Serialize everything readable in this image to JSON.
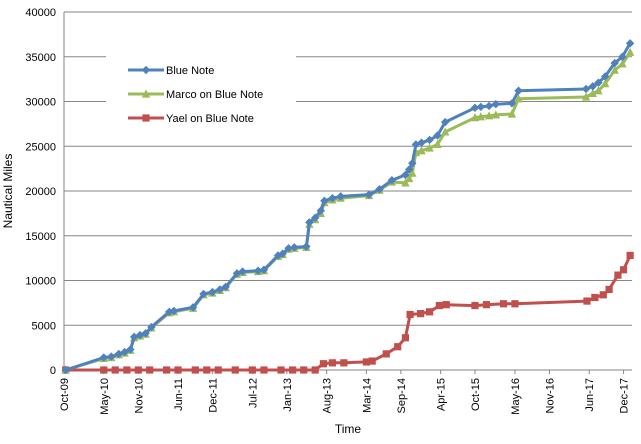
{
  "chart_data": {
    "type": "line",
    "title": "",
    "xlabel": "Time",
    "ylabel": "Nautical Miles",
    "ylim": [
      0,
      40000
    ],
    "yticks": [
      0,
      5000,
      10000,
      15000,
      20000,
      25000,
      30000,
      35000,
      40000
    ],
    "xlim": [
      "2009-10-01",
      "2018-01-15"
    ],
    "xticks": [
      "Oct-09",
      "May-10",
      "Nov-10",
      "Jun-11",
      "Dec-11",
      "Jul-12",
      "Jan-13",
      "Aug-13",
      "Mar-14",
      "Sep-14",
      "Apr-15",
      "Oct-15",
      "May-16",
      "Nov-16",
      "Jun-17",
      "Dec-17"
    ],
    "xtick_dates": [
      "2009-10-01",
      "2010-05-01",
      "2010-11-01",
      "2011-06-01",
      "2011-12-01",
      "2012-07-01",
      "2013-01-01",
      "2013-08-01",
      "2014-03-01",
      "2014-09-01",
      "2015-04-01",
      "2015-10-01",
      "2016-05-01",
      "2016-11-01",
      "2017-06-01",
      "2017-12-01"
    ],
    "grid": {
      "horizontal": true,
      "vertical": false
    },
    "legend_position": "upper-left",
    "series": [
      {
        "name": "Blue Note",
        "color": "#4f81bd",
        "marker": "diamond",
        "points": [
          [
            "2009-10-10",
            0
          ],
          [
            "2010-05-01",
            1400
          ],
          [
            "2010-06-10",
            1500
          ],
          [
            "2010-07-20",
            1800
          ],
          [
            "2010-08-20",
            2000
          ],
          [
            "2010-09-20",
            2300
          ],
          [
            "2010-10-10",
            3700
          ],
          [
            "2010-11-10",
            3900
          ],
          [
            "2010-12-10",
            4100
          ],
          [
            "2011-01-10",
            4800
          ],
          [
            "2011-04-15",
            6500
          ],
          [
            "2011-05-10",
            6600
          ],
          [
            "2011-08-20",
            7000
          ],
          [
            "2011-10-15",
            8500
          ],
          [
            "2011-12-01",
            8700
          ],
          [
            "2012-01-10",
            9000
          ],
          [
            "2012-02-10",
            9300
          ],
          [
            "2012-04-10",
            10800
          ],
          [
            "2012-05-10",
            11000
          ],
          [
            "2012-08-01",
            11100
          ],
          [
            "2012-09-01",
            11200
          ],
          [
            "2012-11-15",
            12800
          ],
          [
            "2012-12-10",
            13000
          ],
          [
            "2013-01-10",
            13600
          ],
          [
            "2013-02-10",
            13700
          ],
          [
            "2013-04-15",
            13800
          ],
          [
            "2013-05-01",
            16500
          ],
          [
            "2013-06-01",
            17000
          ],
          [
            "2013-07-01",
            17800
          ],
          [
            "2013-07-20",
            18900
          ],
          [
            "2013-09-01",
            19200
          ],
          [
            "2013-10-15",
            19400
          ],
          [
            "2014-03-15",
            19600
          ],
          [
            "2014-05-10",
            20200
          ],
          [
            "2014-07-15",
            21200
          ],
          [
            "2014-09-25",
            21800
          ],
          [
            "2014-10-15",
            22400
          ],
          [
            "2014-11-01",
            23100
          ],
          [
            "2014-11-20",
            25200
          ],
          [
            "2014-12-20",
            25400
          ],
          [
            "2015-02-01",
            25700
          ],
          [
            "2015-03-15",
            26200
          ],
          [
            "2015-04-25",
            27700
          ],
          [
            "2015-10-01",
            29300
          ],
          [
            "2015-11-01",
            29400
          ],
          [
            "2015-12-15",
            29500
          ],
          [
            "2016-01-20",
            29700
          ],
          [
            "2016-04-15",
            29800
          ],
          [
            "2016-05-20",
            31200
          ],
          [
            "2017-05-15",
            31400
          ],
          [
            "2017-06-20",
            31700
          ],
          [
            "2017-07-20",
            32100
          ],
          [
            "2017-08-25",
            32800
          ],
          [
            "2017-10-15",
            34300
          ],
          [
            "2017-11-25",
            35000
          ],
          [
            "2018-01-05",
            36500
          ]
        ]
      },
      {
        "name": "Marco on Blue Note",
        "color": "#9bbb59",
        "marker": "triangle",
        "points": [
          [
            "2009-10-10",
            0
          ],
          [
            "2010-05-01",
            1300
          ],
          [
            "2010-06-10",
            1400
          ],
          [
            "2010-07-20",
            1700
          ],
          [
            "2010-08-20",
            1900
          ],
          [
            "2010-09-20",
            2200
          ],
          [
            "2010-10-10",
            3600
          ],
          [
            "2010-11-10",
            3800
          ],
          [
            "2010-12-10",
            4000
          ],
          [
            "2011-01-10",
            4700
          ],
          [
            "2011-04-15",
            6400
          ],
          [
            "2011-05-10",
            6500
          ],
          [
            "2011-08-20",
            6900
          ],
          [
            "2011-10-15",
            8400
          ],
          [
            "2011-12-01",
            8600
          ],
          [
            "2012-01-10",
            8900
          ],
          [
            "2012-02-10",
            9200
          ],
          [
            "2012-04-10",
            10700
          ],
          [
            "2012-05-10",
            10900
          ],
          [
            "2012-08-01",
            11000
          ],
          [
            "2012-09-01",
            11100
          ],
          [
            "2012-11-15",
            12700
          ],
          [
            "2012-12-10",
            12900
          ],
          [
            "2013-01-10",
            13500
          ],
          [
            "2013-02-10",
            13600
          ],
          [
            "2013-04-15",
            13700
          ],
          [
            "2013-05-01",
            16300
          ],
          [
            "2013-06-01",
            16800
          ],
          [
            "2013-07-01",
            17500
          ],
          [
            "2013-07-20",
            18700
          ],
          [
            "2013-09-01",
            19000
          ],
          [
            "2013-10-15",
            19200
          ],
          [
            "2014-03-15",
            19500
          ],
          [
            "2014-05-10",
            20100
          ],
          [
            "2014-07-15",
            21000
          ],
          [
            "2014-09-25",
            20900
          ],
          [
            "2014-10-15",
            21400
          ],
          [
            "2014-11-01",
            22000
          ],
          [
            "2014-11-20",
            24300
          ],
          [
            "2014-12-20",
            24500
          ],
          [
            "2015-02-01",
            24800
          ],
          [
            "2015-03-15",
            25200
          ],
          [
            "2015-04-25",
            26600
          ],
          [
            "2015-10-01",
            28200
          ],
          [
            "2015-11-01",
            28300
          ],
          [
            "2015-12-15",
            28400
          ],
          [
            "2016-01-20",
            28500
          ],
          [
            "2016-04-15",
            28600
          ],
          [
            "2016-05-20",
            30300
          ],
          [
            "2017-05-15",
            30500
          ],
          [
            "2017-06-20",
            30900
          ],
          [
            "2017-07-20",
            31200
          ],
          [
            "2017-08-25",
            32000
          ],
          [
            "2017-10-15",
            33500
          ],
          [
            "2017-11-25",
            34200
          ],
          [
            "2018-01-05",
            35500
          ]
        ]
      },
      {
        "name": "Yael on Blue Note",
        "color": "#c0504d",
        "marker": "square",
        "points": [
          [
            "2009-10-10",
            0
          ],
          [
            "2010-05-01",
            0
          ],
          [
            "2010-07-01",
            0
          ],
          [
            "2010-09-01",
            0
          ],
          [
            "2010-11-01",
            0
          ],
          [
            "2011-01-01",
            0
          ],
          [
            "2011-04-01",
            0
          ],
          [
            "2011-06-01",
            0
          ],
          [
            "2011-09-01",
            0
          ],
          [
            "2011-11-01",
            0
          ],
          [
            "2012-01-01",
            0
          ],
          [
            "2012-04-01",
            0
          ],
          [
            "2012-07-01",
            0
          ],
          [
            "2012-09-01",
            0
          ],
          [
            "2012-12-01",
            0
          ],
          [
            "2013-02-01",
            0
          ],
          [
            "2013-04-01",
            0
          ],
          [
            "2013-06-01",
            0
          ],
          [
            "2013-07-15",
            700
          ],
          [
            "2013-09-01",
            800
          ],
          [
            "2013-11-01",
            800
          ],
          [
            "2014-03-01",
            900
          ],
          [
            "2014-04-01",
            1000
          ],
          [
            "2014-06-15",
            1800
          ],
          [
            "2014-08-15",
            2600
          ],
          [
            "2014-09-25",
            3600
          ],
          [
            "2014-10-20",
            6200
          ],
          [
            "2014-12-15",
            6300
          ],
          [
            "2015-02-01",
            6500
          ],
          [
            "2015-03-25",
            7200
          ],
          [
            "2015-05-01",
            7300
          ],
          [
            "2015-10-01",
            7200
          ],
          [
            "2015-12-01",
            7300
          ],
          [
            "2016-03-01",
            7400
          ],
          [
            "2016-05-01",
            7400
          ],
          [
            "2017-05-20",
            7700
          ],
          [
            "2017-07-01",
            8100
          ],
          [
            "2017-08-15",
            8400
          ],
          [
            "2017-09-15",
            9000
          ],
          [
            "2017-11-01",
            10600
          ],
          [
            "2017-12-01",
            11200
          ],
          [
            "2018-01-05",
            12800
          ]
        ]
      }
    ]
  }
}
